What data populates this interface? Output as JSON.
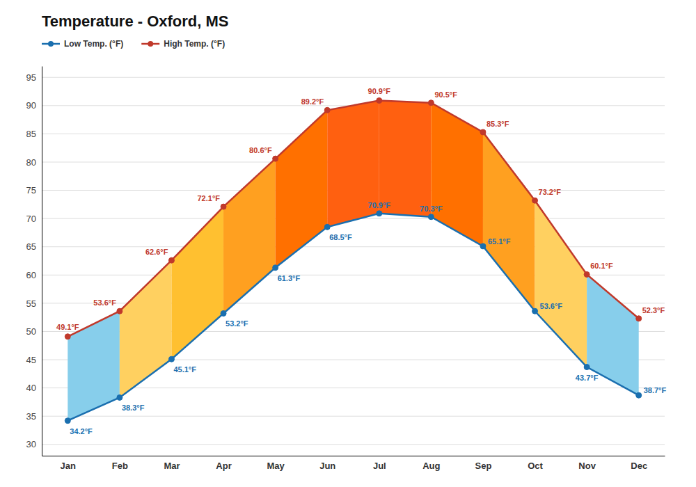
{
  "chart_data": {
    "type": "line",
    "title": "Temperature - Oxford, MS",
    "categories": [
      "Jan",
      "Feb",
      "Mar",
      "Apr",
      "May",
      "Jun",
      "Jul",
      "Aug",
      "Sep",
      "Oct",
      "Nov",
      "Dec"
    ],
    "series": [
      {
        "name": "Low Temp. (°F)",
        "color": "#1a6faf",
        "marker": "circle",
        "values": [
          34.2,
          38.3,
          45.1,
          53.2,
          61.3,
          68.5,
          70.9,
          70.3,
          65.1,
          53.6,
          43.7,
          38.7
        ],
        "value_labels": [
          "34.2°F",
          "38.3°F",
          "45.1°F",
          "53.2°F",
          "61.3°F",
          "68.5°F",
          "70.9°F",
          "70.3°F",
          "65.1°F",
          "53.6°F",
          "43.7°F",
          "38.7°F"
        ]
      },
      {
        "name": "High Temp. (°F)",
        "color": "#c0392b",
        "marker": "circle",
        "values": [
          49.1,
          53.6,
          62.6,
          72.1,
          80.6,
          89.2,
          90.9,
          90.5,
          85.3,
          73.2,
          60.1,
          52.3
        ],
        "value_labels": [
          "49.1°F",
          "53.6°F",
          "62.6°F",
          "72.1°F",
          "80.6°F",
          "89.2°F",
          "90.9°F",
          "90.5°F",
          "85.3°F",
          "73.2°F",
          "60.1°F",
          "52.3°F"
        ]
      }
    ],
    "colors": [
      "#87CEEB",
      "#FFD060",
      "#FFC030",
      "#FFA020",
      "#FF7000",
      "#FF6010",
      "#FF6010",
      "#FF7000",
      "#FFA020",
      "#FFD060",
      "#87CEEB"
    ],
    "ylim": [
      28,
      97
    ],
    "yticks": [
      30,
      35,
      40,
      45,
      50,
      55,
      60,
      65,
      70,
      75,
      80,
      85,
      90,
      95
    ],
    "grid": true,
    "legend": "upper left",
    "data_labels": true
  }
}
